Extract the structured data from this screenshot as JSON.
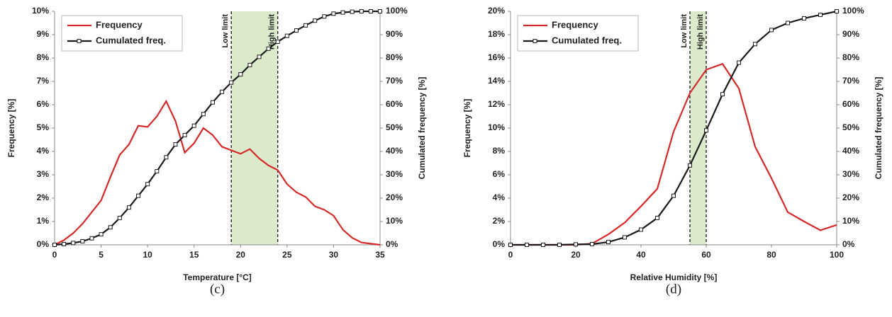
{
  "chart_data": [
    {
      "type": "line",
      "caption": "(c)",
      "xlabel": "Temperature [°C]",
      "ylabel": "Frequency [%]",
      "y2label": "Cumulated frequency [%]",
      "x": [
        0,
        1,
        2,
        3,
        4,
        5,
        6,
        7,
        8,
        9,
        10,
        11,
        12,
        13,
        14,
        15,
        16,
        17,
        18,
        19,
        20,
        21,
        22,
        23,
        24,
        25,
        26,
        27,
        28,
        29,
        30,
        31,
        32,
        33,
        34,
        35
      ],
      "series": [
        {
          "name": "Frequency",
          "color": "#d42a2a",
          "values": [
            0,
            0.2,
            0.5,
            0.9,
            1.4,
            1.9,
            2.9,
            3.85,
            4.3,
            5.1,
            5.05,
            5.5,
            6.15,
            5.3,
            3.95,
            4.35,
            5.0,
            4.7,
            4.2,
            4.05,
            3.9,
            4.1,
            3.7,
            3.4,
            3.2,
            2.6,
            2.25,
            2.05,
            1.65,
            1.5,
            1.25,
            0.65,
            0.3,
            0.1,
            0.05,
            0
          ]
        },
        {
          "name": "Cumulated freq.",
          "color": "#1a1a1a",
          "axis": "y2",
          "marker": "square",
          "values": [
            0,
            0.3,
            0.8,
            1.5,
            2.8,
            4.5,
            7.5,
            11.5,
            16,
            21,
            26,
            31.5,
            37.5,
            43,
            47,
            51,
            56,
            61,
            65.5,
            69.5,
            73,
            77,
            80.5,
            84,
            87,
            89.5,
            91.8,
            94,
            96,
            97.8,
            99,
            99.5,
            99.8,
            100,
            100,
            100
          ]
        }
      ],
      "limits": [
        {
          "value": 19,
          "label": "Low limit"
        },
        {
          "value": 24,
          "label": "High limit"
        }
      ],
      "limit_fill": "#dbeacb",
      "legend": "upper left",
      "xlim": [
        0,
        35
      ],
      "xticks": [
        0,
        5,
        10,
        15,
        20,
        25,
        30,
        35
      ],
      "ylim": [
        0,
        10
      ],
      "yticks": [
        {
          "value": 0,
          "label": "0%"
        },
        {
          "value": 1,
          "label": "1%"
        },
        {
          "value": 2,
          "label": "2%"
        },
        {
          "value": 3,
          "label": "3%"
        },
        {
          "value": 4,
          "label": "4%"
        },
        {
          "value": 5,
          "label": "5%"
        },
        {
          "value": 6,
          "label": "6%"
        },
        {
          "value": 7,
          "label": "7%"
        },
        {
          "value": 8,
          "label": "8%"
        },
        {
          "value": 9,
          "label": "9%"
        },
        {
          "value": 10,
          "label": "10%"
        }
      ],
      "y2lim": [
        0,
        100
      ],
      "y2ticks": [
        {
          "value": 0,
          "label": "0%"
        },
        {
          "value": 10,
          "label": "10%"
        },
        {
          "value": 20,
          "label": "20%"
        },
        {
          "value": 30,
          "label": "30%"
        },
        {
          "value": 40,
          "label": "40%"
        },
        {
          "value": 50,
          "label": "50%"
        },
        {
          "value": 60,
          "label": "60%"
        },
        {
          "value": 70,
          "label": "70%"
        },
        {
          "value": 80,
          "label": "80%"
        },
        {
          "value": 90,
          "label": "90%"
        },
        {
          "value": 100,
          "label": "100%"
        }
      ]
    },
    {
      "type": "line",
      "caption": "(d)",
      "xlabel": "Relative Humidity [%]",
      "ylabel": "Frequency [%]",
      "y2label": "Cumulated frequency [%]",
      "x": [
        0,
        5,
        10,
        15,
        20,
        25,
        30,
        35,
        40,
        45,
        50,
        55,
        60,
        65,
        70,
        75,
        80,
        85,
        90,
        95,
        100
      ],
      "series": [
        {
          "name": "Frequency",
          "color": "#d42a2a",
          "values": [
            0,
            0,
            0,
            0,
            0,
            0.1,
            0.9,
            1.9,
            3.3,
            4.8,
            9.7,
            13,
            15,
            15.5,
            13.4,
            8.4,
            5.7,
            2.8,
            2,
            1.25,
            1.7
          ]
        },
        {
          "name": "Cumulated freq.",
          "color": "#1a1a1a",
          "axis": "y2",
          "marker": "square",
          "values": [
            0,
            0,
            0,
            0,
            0.2,
            0.3,
            1.2,
            3.2,
            6.5,
            11.5,
            21,
            34,
            49,
            64.5,
            78,
            86,
            92,
            95,
            97,
            98.5,
            100
          ]
        }
      ],
      "limits": [
        {
          "value": 55,
          "label": "Low limit"
        },
        {
          "value": 60,
          "label": "High limit"
        }
      ],
      "limit_fill": "#dbeacb",
      "legend": "upper left",
      "xlim": [
        0,
        100
      ],
      "xticks": [
        0,
        20,
        40,
        60,
        80,
        100
      ],
      "ylim": [
        0,
        20
      ],
      "yticks": [
        {
          "value": 0,
          "label": "0%"
        },
        {
          "value": 2,
          "label": "2%"
        },
        {
          "value": 4,
          "label": "4%"
        },
        {
          "value": 6,
          "label": "6%"
        },
        {
          "value": 8,
          "label": "8%"
        },
        {
          "value": 10,
          "label": "10%"
        },
        {
          "value": 12,
          "label": "12%"
        },
        {
          "value": 14,
          "label": "14%"
        },
        {
          "value": 16,
          "label": "16%"
        },
        {
          "value": 18,
          "label": "18%"
        },
        {
          "value": 20,
          "label": "20%"
        }
      ],
      "y2lim": [
        0,
        100
      ],
      "y2ticks": [
        {
          "value": 0,
          "label": "0%"
        },
        {
          "value": 10,
          "label": "10%"
        },
        {
          "value": 20,
          "label": "20%"
        },
        {
          "value": 30,
          "label": "30%"
        },
        {
          "value": 40,
          "label": "40%"
        },
        {
          "value": 50,
          "label": "50%"
        },
        {
          "value": 60,
          "label": "60%"
        },
        {
          "value": 70,
          "label": "70%"
        },
        {
          "value": 80,
          "label": "80%"
        },
        {
          "value": 90,
          "label": "90%"
        },
        {
          "value": 100,
          "label": "100%"
        }
      ]
    }
  ]
}
